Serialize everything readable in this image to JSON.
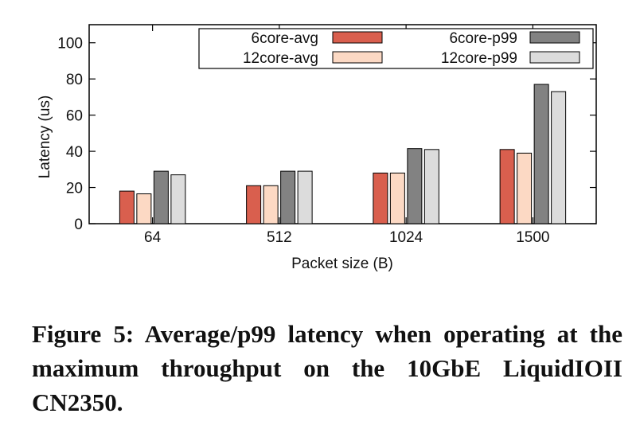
{
  "chart_data": {
    "type": "bar",
    "title": "",
    "xlabel": "Packet size (B)",
    "ylabel": "Latency (us)",
    "categories": [
      "64",
      "512",
      "1024",
      "1500"
    ],
    "ylim": [
      0,
      110
    ],
    "yticks": [
      0,
      20,
      40,
      60,
      80,
      100
    ],
    "grid": false,
    "legend_position": "top-right",
    "series": [
      {
        "name": "6core-avg",
        "color": "#d95f4e",
        "values": [
          18,
          21,
          28,
          41
        ]
      },
      {
        "name": "12core-avg",
        "color": "#fcd9c4",
        "values": [
          16.5,
          21,
          28,
          39
        ]
      },
      {
        "name": "6core-p99",
        "color": "#828282",
        "values": [
          29,
          29,
          41.5,
          77
        ]
      },
      {
        "name": "12core-p99",
        "color": "#dcdcdc",
        "values": [
          27,
          29,
          41,
          73
        ]
      }
    ]
  },
  "caption": "Figure 5: Average/p99 latency when operating at the maximum throughput on the 10GbE LiquidIOII CN2350."
}
